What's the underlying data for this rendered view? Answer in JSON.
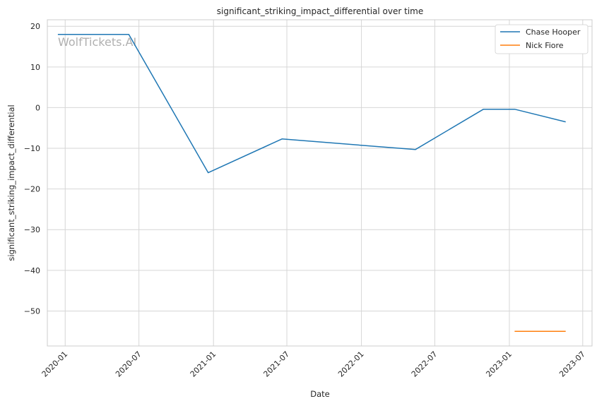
{
  "chart_data": {
    "type": "line",
    "title": "significant_striking_impact_differential over time",
    "xlabel": "Date",
    "ylabel": "significant_striking_impact_differential",
    "watermark": "WolfTickets.AI",
    "x_ticks": [
      "2020-01",
      "2020-07",
      "2021-01",
      "2021-07",
      "2022-01",
      "2022-07",
      "2023-01",
      "2023-07"
    ],
    "y_ticks": [
      20,
      10,
      0,
      -10,
      -20,
      -30,
      -40,
      -50
    ],
    "y_tick_labels": [
      "20",
      "10",
      "0",
      "−10",
      "−20",
      "−30",
      "−40",
      "−50"
    ],
    "xlim": [
      "2019-11-18",
      "2023-07-24"
    ],
    "ylim": [
      -58.6,
      21.6
    ],
    "grid": true,
    "legend_position": "top-right",
    "series": [
      {
        "name": "Chase Hooper",
        "color": "#1f77b4",
        "points": [
          {
            "x": "2019-12-14",
            "y": 18.0
          },
          {
            "x": "2020-06-06",
            "y": 18.0
          },
          {
            "x": "2020-12-19",
            "y": -16.0
          },
          {
            "x": "2021-06-19",
            "y": -7.7
          },
          {
            "x": "2022-05-14",
            "y": -10.3
          },
          {
            "x": "2022-10-29",
            "y": -0.4
          },
          {
            "x": "2023-01-14",
            "y": -0.4
          },
          {
            "x": "2023-05-20",
            "y": -3.5
          }
        ]
      },
      {
        "name": "Nick Fiore",
        "color": "#ff7f0e",
        "points": [
          {
            "x": "2023-01-14",
            "y": -55.0
          },
          {
            "x": "2023-05-20",
            "y": -55.0
          }
        ]
      }
    ]
  }
}
